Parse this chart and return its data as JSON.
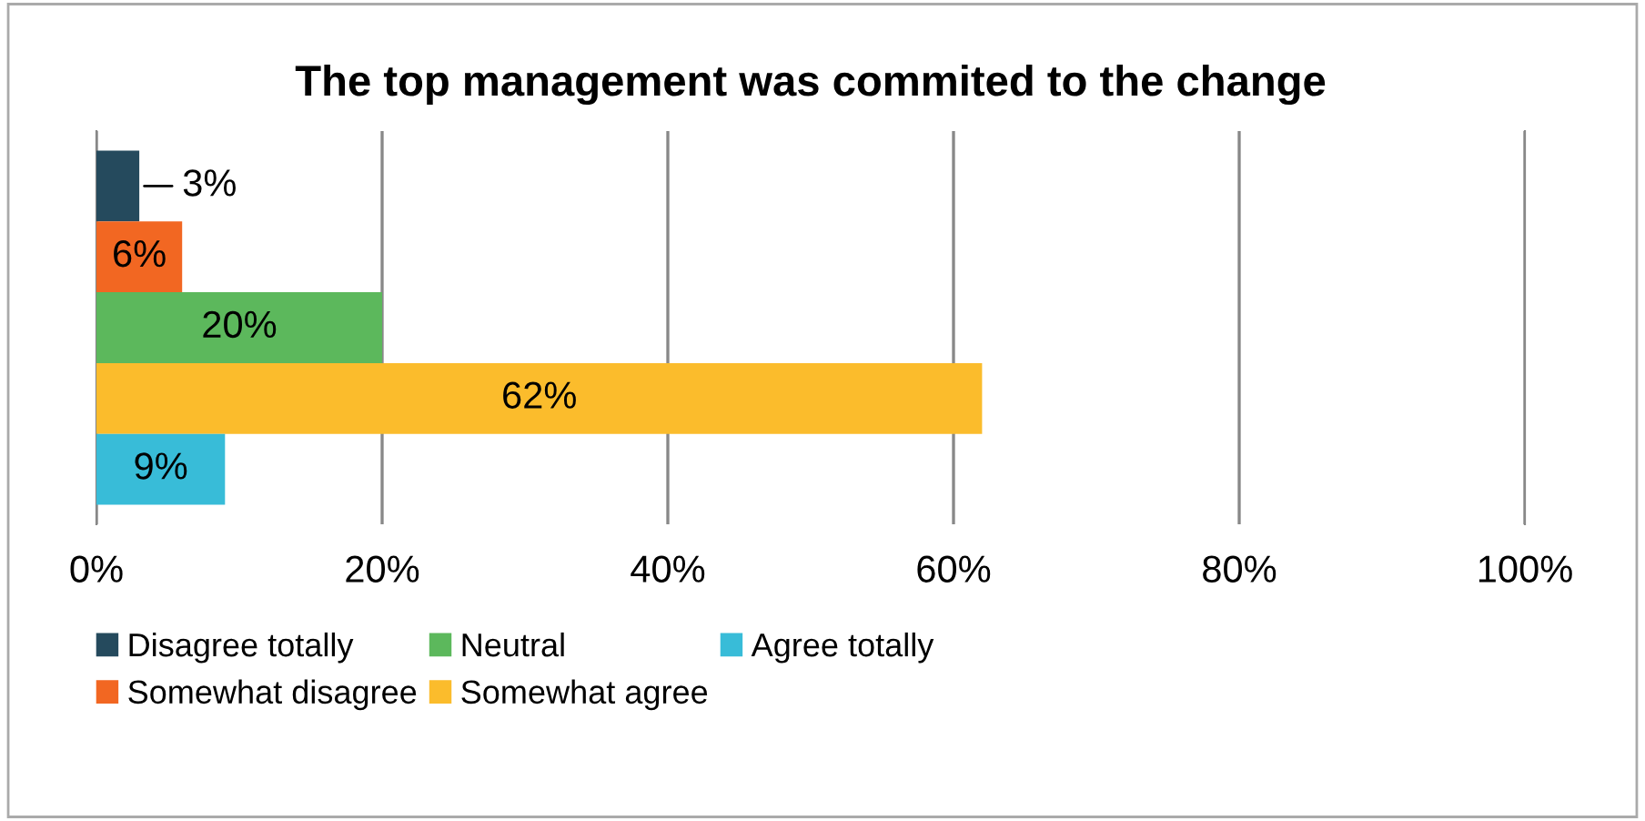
{
  "chart_data": {
    "type": "bar",
    "orientation": "horizontal",
    "title": "The top management was commited to the change",
    "categories": [
      null
    ],
    "series": [
      {
        "name": "Disagree totally",
        "color": "#254a5d",
        "values": [
          3
        ],
        "value_labels": [
          "3%"
        ]
      },
      {
        "name": "Somewhat disagree",
        "color": "#f26722",
        "values": [
          6
        ],
        "value_labels": [
          "6%"
        ]
      },
      {
        "name": "Neutral",
        "color": "#5cb85c",
        "values": [
          20
        ],
        "value_labels": [
          "20%"
        ]
      },
      {
        "name": "Somewhat agree",
        "color": "#fbbc2c",
        "values": [
          62
        ],
        "value_labels": [
          "62%"
        ]
      },
      {
        "name": "Agree totally",
        "color": "#38bcd8",
        "values": [
          9
        ],
        "value_labels": [
          "9%"
        ]
      }
    ],
    "xlim": [
      0,
      100
    ],
    "xticks": [
      {
        "value": 0,
        "label": "0%"
      },
      {
        "value": 20,
        "label": "20%"
      },
      {
        "value": 40,
        "label": "40%"
      },
      {
        "value": 60,
        "label": "60%"
      },
      {
        "value": 80,
        "label": "80%"
      },
      {
        "value": 100,
        "label": "100%"
      }
    ],
    "grid": "x",
    "legend": "bottom"
  }
}
